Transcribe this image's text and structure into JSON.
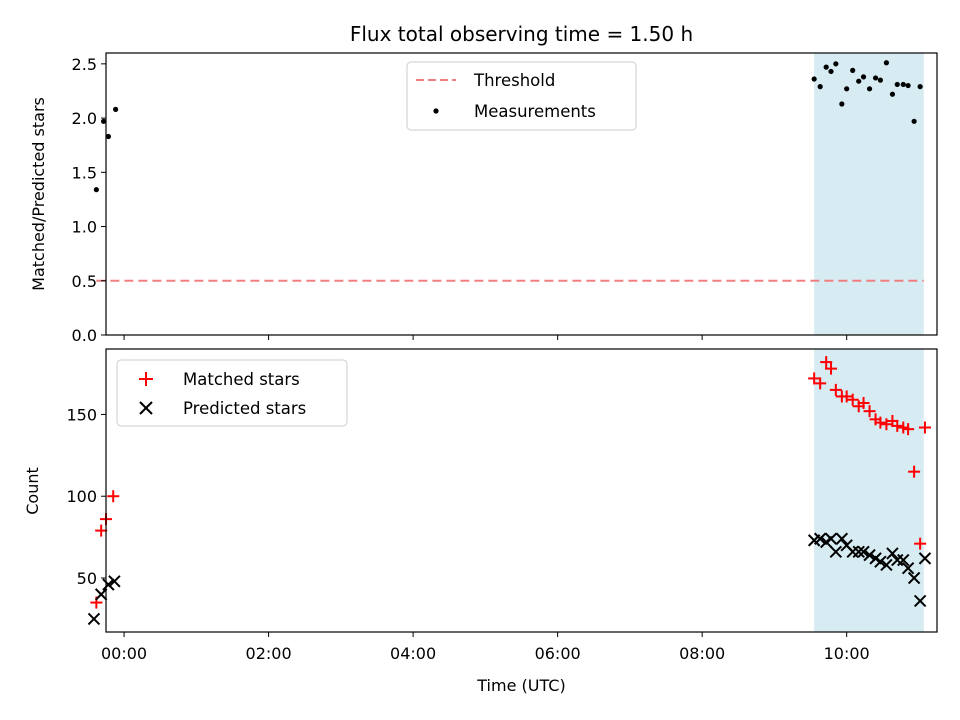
{
  "chart_data": [
    {
      "type": "scatter",
      "title": "Flux total observing time = 1.50 h",
      "xlabel": "",
      "ylabel": "Matched/Predicted stars",
      "xlim": [
        "-00:15",
        "11:15"
      ],
      "ylim": [
        0,
        2.6
      ],
      "yticks": [
        0,
        0.5,
        1.0,
        1.5,
        2.0,
        2.5
      ],
      "ytick_labels": [
        "0.0",
        "0.5",
        "1.0",
        "1.5",
        "2.0",
        "2.5"
      ],
      "xticks": [
        "00:00",
        "02:00",
        "04:00",
        "06:00",
        "08:00",
        "10:00"
      ],
      "show_xtick_labels": false,
      "shaded_region": {
        "start": "09:33",
        "end": "11:04",
        "color": "#add8e6"
      },
      "legend_position": "top-center",
      "threshold": {
        "name": "Threshold",
        "value": 0.5,
        "x_start": "23:37",
        "x_end": "11:04",
        "color": "#f08080",
        "style": "dashed"
      },
      "series": [
        {
          "name": "Measurements",
          "color": "#000000",
          "marker": "dot",
          "x": [
            "23:37",
            "23:43",
            "23:47",
            "23:53",
            "09:33",
            "09:38",
            "09:43",
            "09:47",
            "09:51",
            "09:56",
            "10:00",
            "10:05",
            "10:10",
            "10:14",
            "10:19",
            "10:24",
            "10:28",
            "10:33",
            "10:38",
            "10:42",
            "10:47",
            "10:51",
            "10:56",
            "11:01"
          ],
          "y": [
            1.34,
            1.97,
            1.83,
            2.08,
            2.36,
            2.29,
            2.47,
            2.43,
            2.5,
            2.13,
            2.27,
            2.44,
            2.34,
            2.38,
            2.27,
            2.37,
            2.35,
            2.51,
            2.22,
            2.31,
            2.31,
            2.3,
            1.97,
            2.29
          ]
        }
      ]
    },
    {
      "type": "scatter",
      "title": "",
      "xlabel": "Time (UTC)",
      "ylabel": "Count",
      "xlim": [
        "-00:15",
        "11:15"
      ],
      "ylim": [
        17,
        190
      ],
      "yticks": [
        50,
        100,
        150
      ],
      "ytick_labels": [
        "50",
        "100",
        "150"
      ],
      "xticks": [
        "00:00",
        "02:00",
        "04:00",
        "06:00",
        "08:00",
        "10:00"
      ],
      "xtick_labels": [
        "00:00",
        "02:00",
        "04:00",
        "06:00",
        "08:00",
        "10:00"
      ],
      "shaded_region": {
        "start": "09:33",
        "end": "11:04",
        "color": "#add8e6"
      },
      "legend_position": "top-left",
      "series": [
        {
          "name": "Matched stars",
          "color": "#ff0000",
          "marker": "plus",
          "x": [
            "23:37",
            "23:41",
            "23:45",
            "23:51",
            "09:33",
            "09:38",
            "09:43",
            "09:47",
            "09:51",
            "09:56",
            "10:00",
            "10:05",
            "10:10",
            "10:14",
            "10:19",
            "10:24",
            "10:28",
            "10:33",
            "10:38",
            "10:42",
            "10:47",
            "10:51",
            "10:56",
            "11:01",
            "11:05"
          ],
          "y": [
            35,
            79,
            86,
            100,
            172,
            169,
            182,
            178,
            165,
            161,
            161,
            159,
            155,
            157,
            152,
            147,
            145,
            144,
            146,
            143,
            142,
            141,
            115,
            71,
            142
          ]
        },
        {
          "name": "Predicted stars",
          "color": "#000000",
          "marker": "x",
          "x": [
            "23:35",
            "23:41",
            "23:47",
            "23:52",
            "09:33",
            "09:38",
            "09:43",
            "09:47",
            "09:51",
            "09:56",
            "10:00",
            "10:05",
            "10:10",
            "10:14",
            "10:19",
            "10:24",
            "10:28",
            "10:33",
            "10:38",
            "10:42",
            "10:47",
            "10:51",
            "10:56",
            "11:01",
            "11:05"
          ],
          "y": [
            25,
            40,
            46,
            48,
            73,
            74,
            72,
            74,
            66,
            74,
            70,
            66,
            66,
            66,
            64,
            62,
            60,
            58,
            65,
            61,
            61,
            56,
            50,
            36,
            62
          ]
        }
      ]
    }
  ]
}
